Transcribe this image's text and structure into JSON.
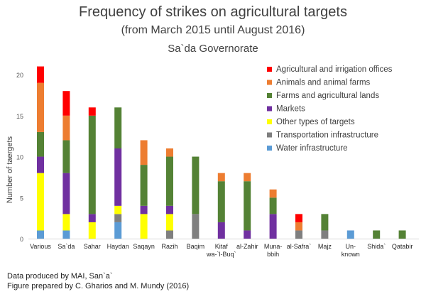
{
  "chart_data": {
    "type": "bar",
    "stacked": true,
    "title": "Frequency of strikes on agricultural targets",
    "subtitle": "(from March 2015 until August 2016)",
    "region": "Sa`da Governorate",
    "ylabel": "Number of taergets",
    "xlabel": "",
    "ylim": [
      0,
      22
    ],
    "yticks": [
      0,
      5,
      10,
      15,
      20
    ],
    "gridlines": false,
    "legend_position": "top-right",
    "categories": [
      [
        "Various"
      ],
      [
        "Sa`da"
      ],
      [
        "Sahar"
      ],
      [
        "Haydan"
      ],
      [
        "Saqayn"
      ],
      [
        "Razih"
      ],
      [
        "Baqim"
      ],
      [
        "Kitaf",
        "wa-`l-Buq`"
      ],
      [
        "al-Zahir"
      ],
      [
        "Muna-",
        "bbih"
      ],
      [
        "al-Safra`"
      ],
      [
        "Majz"
      ],
      [
        "Un-",
        "known"
      ],
      [
        "Shida`"
      ],
      [
        "Qatabir"
      ]
    ],
    "series": [
      {
        "name": "Water infrastructure",
        "color": "#5b9bd5",
        "values": [
          1,
          1,
          0,
          2,
          0,
          0,
          0,
          0,
          0,
          0,
          0,
          0,
          1,
          0,
          0
        ]
      },
      {
        "name": "Transportation infrastructure",
        "color": "#7f7f7f",
        "values": [
          0,
          0,
          0,
          1,
          0,
          1,
          3,
          0,
          0,
          0,
          1,
          1,
          0,
          0,
          0
        ]
      },
      {
        "name": "Other types of targets",
        "color": "#ffff00",
        "values": [
          7,
          2,
          2,
          1,
          3,
          2,
          0,
          0,
          0,
          0,
          0,
          0,
          0,
          0,
          0
        ]
      },
      {
        "name": "Markets",
        "color": "#7030a0",
        "values": [
          2,
          5,
          1,
          7,
          1,
          1,
          0,
          2,
          1,
          3,
          0,
          0,
          0,
          0,
          0
        ]
      },
      {
        "name": "Farms and agricultural lands",
        "color": "#548235",
        "values": [
          3,
          4,
          12,
          5,
          5,
          6,
          7,
          5,
          6,
          2,
          0,
          2,
          0,
          1,
          1
        ]
      },
      {
        "name": "Animals and animal farms",
        "color": "#ed7d31",
        "values": [
          6,
          3,
          0,
          0,
          3,
          1,
          0,
          1,
          1,
          1,
          1,
          0,
          0,
          0,
          0
        ]
      },
      {
        "name": "Agricultural and irrigation offices",
        "color": "#ff0000",
        "values": [
          2,
          3,
          1,
          0,
          0,
          0,
          0,
          0,
          0,
          0,
          1,
          0,
          0,
          0,
          0
        ]
      }
    ],
    "legend_order": [
      "Agricultural and irrigation offices",
      "Animals and animal farms",
      "Farms and agricultural lands",
      "Markets",
      "Other types of targets",
      "Transportation infrastructure",
      "Water infrastructure"
    ]
  },
  "credits": {
    "line1": "Data produced by MAI, San`a`",
    "line2": "Figure prepared by C. Gharios and M. Mundy (2016)"
  }
}
